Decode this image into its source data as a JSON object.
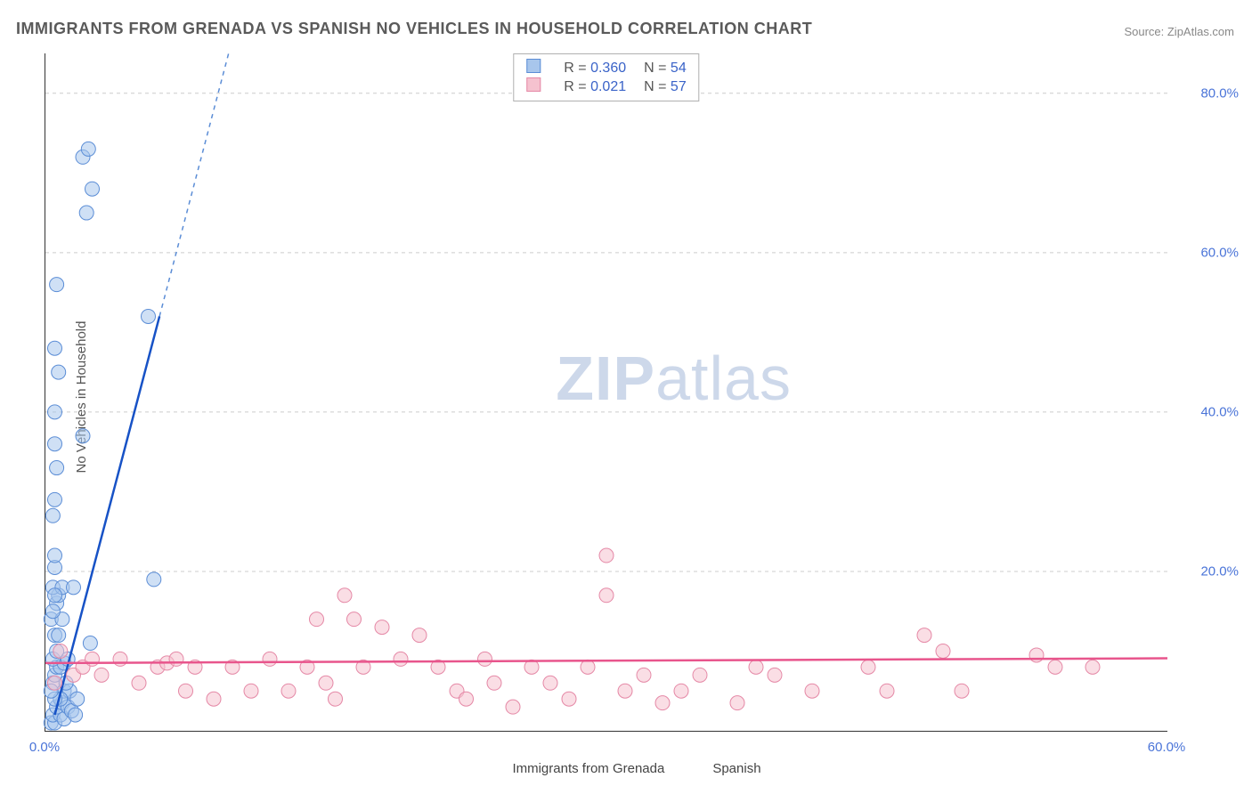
{
  "title": "IMMIGRANTS FROM GRENADA VS SPANISH NO VEHICLES IN HOUSEHOLD CORRELATION CHART",
  "source_prefix": "Source: ",
  "source_name": "ZipAtlas.com",
  "y_axis_label": "No Vehicles in Household",
  "watermark_bold": "ZIP",
  "watermark_light": "atlas",
  "chart": {
    "type": "scatter",
    "xlim": [
      0,
      60
    ],
    "ylim": [
      0,
      85
    ],
    "x_ticks": [
      {
        "v": 0,
        "label": "0.0%"
      },
      {
        "v": 60,
        "label": "60.0%"
      }
    ],
    "y_ticks": [
      {
        "v": 20,
        "label": "20.0%"
      },
      {
        "v": 40,
        "label": "40.0%"
      },
      {
        "v": 60,
        "label": "60.0%"
      },
      {
        "v": 80,
        "label": "80.0%"
      }
    ],
    "grid_color": "#cccccc",
    "background_color": "#ffffff",
    "series": [
      {
        "name": "Immigrants from Grenada",
        "color_fill": "#a8c6ec",
        "color_stroke": "#5b8dd6",
        "marker_radius": 8,
        "stats": {
          "R_label": "R =",
          "R": "0.360",
          "N_label": "N =",
          "N": "54"
        },
        "trend": {
          "x1": 0.5,
          "y1": 2,
          "x2": 6.1,
          "y2": 52,
          "dash_to_y": 85,
          "line_color": "#1752c6"
        },
        "points": [
          [
            0.3,
            1
          ],
          [
            0.5,
            1
          ],
          [
            0.4,
            2
          ],
          [
            0.8,
            2
          ],
          [
            1.0,
            1.5
          ],
          [
            0.6,
            3
          ],
          [
            0.9,
            3.5
          ],
          [
            1.2,
            3
          ],
          [
            1.4,
            2.5
          ],
          [
            1.6,
            2
          ],
          [
            0.4,
            6
          ],
          [
            0.5,
            7
          ],
          [
            0.6,
            8
          ],
          [
            0.8,
            8
          ],
          [
            1.0,
            8.5
          ],
          [
            1.2,
            9
          ],
          [
            2.4,
            11
          ],
          [
            0.5,
            12
          ],
          [
            0.3,
            14
          ],
          [
            0.6,
            16
          ],
          [
            0.7,
            17
          ],
          [
            0.4,
            18
          ],
          [
            0.9,
            18
          ],
          [
            1.5,
            18
          ],
          [
            5.8,
            19
          ],
          [
            0.5,
            20.5
          ],
          [
            0.5,
            22
          ],
          [
            0.4,
            27
          ],
          [
            0.5,
            29
          ],
          [
            0.6,
            33
          ],
          [
            0.5,
            36
          ],
          [
            2.0,
            37
          ],
          [
            0.5,
            40
          ],
          [
            0.7,
            45
          ],
          [
            0.5,
            48
          ],
          [
            0.6,
            56
          ],
          [
            2.2,
            65
          ],
          [
            2.5,
            68
          ],
          [
            2.0,
            72
          ],
          [
            2.3,
            73
          ],
          [
            5.5,
            52
          ],
          [
            1.0,
            5
          ],
          [
            1.3,
            5
          ],
          [
            1.7,
            4
          ],
          [
            1.1,
            6
          ],
          [
            0.8,
            4
          ],
          [
            0.5,
            4
          ],
          [
            0.3,
            5
          ],
          [
            0.4,
            9
          ],
          [
            0.6,
            10
          ],
          [
            0.7,
            12
          ],
          [
            0.9,
            14
          ],
          [
            0.4,
            15
          ],
          [
            0.5,
            17
          ]
        ]
      },
      {
        "name": "Spanish",
        "color_fill": "#f5c2cf",
        "color_stroke": "#e588a6",
        "marker_radius": 8,
        "stats": {
          "R_label": "R =",
          "R": "0.021",
          "N_label": "N =",
          "N": "57"
        },
        "trend": {
          "x1": 0,
          "y1": 8.5,
          "x2": 60,
          "y2": 9.1,
          "line_color": "#e8558c"
        },
        "points": [
          [
            0.5,
            6
          ],
          [
            0.8,
            10
          ],
          [
            1.5,
            7
          ],
          [
            2,
            8
          ],
          [
            2.5,
            9
          ],
          [
            3,
            7
          ],
          [
            4,
            9
          ],
          [
            5,
            6
          ],
          [
            6,
            8
          ],
          [
            6.5,
            8.5
          ],
          [
            7,
            9
          ],
          [
            7.5,
            5
          ],
          [
            8,
            8
          ],
          [
            9,
            4
          ],
          [
            10,
            8
          ],
          [
            11,
            5
          ],
          [
            12,
            9
          ],
          [
            13,
            5
          ],
          [
            14,
            8
          ],
          [
            14.5,
            14
          ],
          [
            15,
            6
          ],
          [
            15.5,
            4
          ],
          [
            16,
            17
          ],
          [
            16.5,
            14
          ],
          [
            17,
            8
          ],
          [
            18,
            13
          ],
          [
            19,
            9
          ],
          [
            20,
            12
          ],
          [
            21,
            8
          ],
          [
            22,
            5
          ],
          [
            22.5,
            4
          ],
          [
            23.5,
            9
          ],
          [
            24,
            6
          ],
          [
            25,
            3
          ],
          [
            26,
            8
          ],
          [
            27,
            6
          ],
          [
            28,
            4
          ],
          [
            29,
            8
          ],
          [
            30,
            22
          ],
          [
            30,
            17
          ],
          [
            31,
            5
          ],
          [
            32,
            7
          ],
          [
            33,
            3.5
          ],
          [
            34,
            5
          ],
          [
            35,
            7
          ],
          [
            37,
            3.5
          ],
          [
            38,
            8
          ],
          [
            39,
            7
          ],
          [
            41,
            5
          ],
          [
            44,
            8
          ],
          [
            45,
            5
          ],
          [
            47,
            12
          ],
          [
            48,
            10
          ],
          [
            49,
            5
          ],
          [
            53,
            9.5
          ],
          [
            54,
            8
          ],
          [
            56,
            8
          ]
        ]
      }
    ],
    "bottom_legend": [
      {
        "swatch_class": "sw-blue",
        "label": "Immigrants from Grenada"
      },
      {
        "swatch_class": "sw-pink",
        "label": "Spanish"
      }
    ]
  }
}
